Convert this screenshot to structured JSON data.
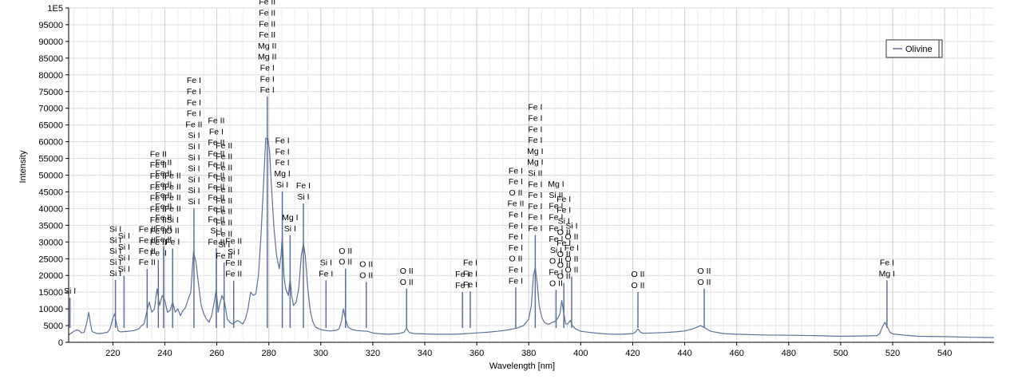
{
  "chart_data": {
    "type": "line",
    "xlabel": "Wavelength [nm]",
    "ylabel": "Intensity",
    "xlim": [
      203,
      559
    ],
    "ylim": [
      0,
      100000
    ],
    "x_ticks": [
      220,
      240,
      260,
      280,
      300,
      320,
      340,
      360,
      380,
      400,
      420,
      440,
      460,
      480,
      500,
      520,
      540
    ],
    "y_ticks": [
      0,
      5000,
      10000,
      15000,
      20000,
      25000,
      30000,
      35000,
      40000,
      45000,
      50000,
      55000,
      60000,
      65000,
      70000,
      75000,
      80000,
      85000,
      90000,
      95000,
      100000
    ],
    "y_tick_labels": [
      "0",
      "5000",
      "10000",
      "15000",
      "20000",
      "25000",
      "30000",
      "35000",
      "40000",
      "45000",
      "50000",
      "55000",
      "60000",
      "65000",
      "70000",
      "75000",
      "80000",
      "85000",
      "90000",
      "95000",
      "1E5"
    ],
    "grid": true,
    "legend": {
      "position": "top-right",
      "entries": [
        "Olivine"
      ]
    },
    "colors": {
      "series": "#5a7298",
      "grid": "#dcdcdc",
      "annotation": "#5a7298"
    },
    "series": [
      {
        "name": "Olivine",
        "points": [
          [
            203,
            2200
          ],
          [
            205,
            3300
          ],
          [
            206,
            3700
          ],
          [
            207,
            3500
          ],
          [
            208,
            2800
          ],
          [
            209,
            3000
          ],
          [
            210,
            6000
          ],
          [
            210.7,
            9000
          ],
          [
            211.3,
            6000
          ],
          [
            212,
            3200
          ],
          [
            214,
            2600
          ],
          [
            216,
            2700
          ],
          [
            218,
            3000
          ],
          [
            219,
            4200
          ],
          [
            220,
            7200
          ],
          [
            220.7,
            8500
          ],
          [
            221.3,
            6000
          ],
          [
            222,
            3500
          ],
          [
            223,
            3100
          ],
          [
            224,
            3200
          ],
          [
            226,
            3300
          ],
          [
            228,
            3500
          ],
          [
            230,
            4000
          ],
          [
            231,
            5000
          ],
          [
            232,
            5500
          ],
          [
            233,
            9000
          ],
          [
            234,
            12000
          ],
          [
            235,
            9000
          ],
          [
            236,
            10000
          ],
          [
            237,
            16000
          ],
          [
            238,
            11000
          ],
          [
            239,
            14000
          ],
          [
            240,
            12500
          ],
          [
            241,
            9000
          ],
          [
            242,
            9500
          ],
          [
            243,
            12000
          ],
          [
            244,
            9000
          ],
          [
            245,
            10000
          ],
          [
            246,
            8000
          ],
          [
            247,
            9500
          ],
          [
            248,
            10500
          ],
          [
            249,
            13000
          ],
          [
            250,
            15000
          ],
          [
            251,
            27000
          ],
          [
            252,
            24000
          ],
          [
            253,
            17000
          ],
          [
            254,
            11000
          ],
          [
            255,
            8500
          ],
          [
            256,
            7000
          ],
          [
            257,
            6000
          ],
          [
            258,
            8000
          ],
          [
            259,
            12000
          ],
          [
            259.8,
            16000
          ],
          [
            260.5,
            9000
          ],
          [
            261,
            11000
          ],
          [
            262,
            14000
          ],
          [
            263,
            12000
          ],
          [
            264,
            7000
          ],
          [
            265,
            6000
          ],
          [
            266,
            5500
          ],
          [
            267,
            6000
          ],
          [
            268,
            6500
          ],
          [
            269,
            6000
          ],
          [
            270,
            5500
          ],
          [
            271,
            7000
          ],
          [
            272,
            10000
          ],
          [
            273,
            15000
          ],
          [
            274,
            14000
          ],
          [
            275,
            14500
          ],
          [
            276,
            20000
          ],
          [
            277,
            32000
          ],
          [
            278,
            48000
          ],
          [
            278.8,
            61000
          ],
          [
            279.6,
            61000
          ],
          [
            280.3,
            57000
          ],
          [
            281,
            47000
          ],
          [
            282,
            34000
          ],
          [
            283,
            26000
          ],
          [
            284,
            22000
          ],
          [
            284.7,
            26000
          ],
          [
            285.2,
            32000
          ],
          [
            285.8,
            20000
          ],
          [
            286.5,
            16000
          ],
          [
            287.5,
            14000
          ],
          [
            288.2,
            19000
          ],
          [
            288.8,
            14000
          ],
          [
            289.5,
            11000
          ],
          [
            290.5,
            12000
          ],
          [
            291.5,
            16000
          ],
          [
            292.5,
            26000
          ],
          [
            293.3,
            29500
          ],
          [
            294,
            26000
          ],
          [
            295,
            16000
          ],
          [
            296,
            9000
          ],
          [
            297,
            6000
          ],
          [
            298,
            4500
          ],
          [
            300,
            3800
          ],
          [
            302,
            3500
          ],
          [
            304,
            3400
          ],
          [
            306,
            3600
          ],
          [
            307,
            4000
          ],
          [
            308,
            6500
          ],
          [
            308.7,
            10000
          ],
          [
            309.5,
            7000
          ],
          [
            310.5,
            4500
          ],
          [
            312,
            3800
          ],
          [
            314,
            3500
          ],
          [
            316,
            3400
          ],
          [
            318,
            3300
          ],
          [
            320,
            2800
          ],
          [
            322,
            2600
          ],
          [
            324,
            2500
          ],
          [
            326,
            2400
          ],
          [
            328,
            2500
          ],
          [
            330,
            2600
          ],
          [
            332,
            3000
          ],
          [
            333,
            4200
          ],
          [
            334,
            2900
          ],
          [
            336,
            2600
          ],
          [
            340,
            2500
          ],
          [
            344,
            2400
          ],
          [
            348,
            2400
          ],
          [
            352,
            2400
          ],
          [
            354,
            2500
          ],
          [
            356,
            2600
          ],
          [
            358,
            2700
          ],
          [
            360,
            2800
          ],
          [
            364,
            3000
          ],
          [
            368,
            3300
          ],
          [
            372,
            3700
          ],
          [
            374,
            4000
          ],
          [
            376,
            4400
          ],
          [
            378,
            5000
          ],
          [
            380,
            7000
          ],
          [
            381,
            11000
          ],
          [
            381.8,
            20000
          ],
          [
            382.5,
            22500
          ],
          [
            383.2,
            18000
          ],
          [
            384,
            11000
          ],
          [
            385,
            7500
          ],
          [
            386,
            6000
          ],
          [
            387,
            5500
          ],
          [
            388,
            5500
          ],
          [
            389,
            6000
          ],
          [
            390,
            6200
          ],
          [
            391,
            7000
          ],
          [
            392,
            8500
          ],
          [
            392.7,
            12500
          ],
          [
            393.4,
            9000
          ],
          [
            394.2,
            5500
          ],
          [
            395,
            5500
          ],
          [
            396,
            6500
          ],
          [
            396.8,
            5000
          ],
          [
            398,
            4000
          ],
          [
            400,
            3300
          ],
          [
            404,
            2900
          ],
          [
            408,
            2600
          ],
          [
            412,
            2400
          ],
          [
            416,
            2400
          ],
          [
            420,
            2600
          ],
          [
            421,
            3000
          ],
          [
            422,
            4000
          ],
          [
            423,
            3000
          ],
          [
            424,
            2700
          ],
          [
            428,
            2800
          ],
          [
            432,
            2900
          ],
          [
            436,
            3100
          ],
          [
            440,
            3400
          ],
          [
            443,
            4000
          ],
          [
            445,
            4600
          ],
          [
            446,
            5000
          ],
          [
            447,
            4600
          ],
          [
            448,
            4200
          ],
          [
            450,
            3300
          ],
          [
            455,
            2600
          ],
          [
            460,
            2400
          ],
          [
            470,
            2200
          ],
          [
            480,
            2100
          ],
          [
            490,
            2000
          ],
          [
            500,
            1800
          ],
          [
            510,
            1900
          ],
          [
            514,
            2000
          ],
          [
            515,
            2600
          ],
          [
            516,
            4500
          ],
          [
            517,
            6000
          ],
          [
            518,
            4500
          ],
          [
            519,
            3000
          ],
          [
            520,
            2500
          ],
          [
            525,
            2100
          ],
          [
            530,
            1800
          ],
          [
            540,
            1700
          ],
          [
            550,
            1500
          ],
          [
            559,
            1400
          ]
        ]
      }
    ],
    "annotations": [
      {
        "x": 203.5,
        "y": 15000,
        "labels": [
          "Si I"
        ]
      },
      {
        "x": 221,
        "y": 33500,
        "labels": [
          "Si I",
          "Si I",
          "Si I",
          "Si I",
          "Si I"
        ]
      },
      {
        "x": 224.3,
        "y": 31500,
        "labels": [
          "Si I",
          "Si I",
          "Si I",
          "Si I"
        ]
      },
      {
        "x": 233.2,
        "y": 33500,
        "labels": [
          "Fe II",
          "Fe II",
          "Fe II",
          "Fe II"
        ]
      },
      {
        "x": 237.5,
        "y": 56000,
        "labels": [
          "Fe II",
          "Fe II",
          "Fe II",
          "Fe II",
          "Fe II",
          "Fe II",
          "Fe II",
          "Fe II",
          "Fe II",
          "Fe II"
        ]
      },
      {
        "x": 239.5,
        "y": 53500,
        "labels": [
          "Fe II",
          "Fe II",
          "Fe II",
          "Fe II",
          "Fe II",
          "Fe II",
          "Fe II",
          "Fe II"
        ]
      },
      {
        "x": 243,
        "y": 49500,
        "labels": [
          "Fe II",
          "Fe II",
          "Fe II",
          "Fe II",
          "Si I",
          "O II",
          "Fe I"
        ]
      },
      {
        "x": 251.2,
        "y": 78000,
        "labels": [
          "Fe I",
          "Fe I",
          "Fe I",
          "Fe I",
          "Fe II",
          "Si I",
          "Si I",
          "Si I",
          "Si I",
          "Si I",
          "Si I",
          "Si I"
        ]
      },
      {
        "x": 259.8,
        "y": 66000,
        "labels": [
          "Fe II",
          "Fe I",
          "Fe II",
          "Fe II",
          "Fe II",
          "Fe II",
          "Fe II",
          "Fe II",
          "Fe II",
          "Fe II",
          "Si I",
          "Fe II"
        ]
      },
      {
        "x": 262.8,
        "y": 58500,
        "labels": [
          "Fe II",
          "Fe II",
          "Fe II",
          "Fe II",
          "Fe II",
          "Fe II",
          "Fe II",
          "Fe II",
          "Fe II",
          "Si I",
          "Fe II"
        ]
      },
      {
        "x": 266.5,
        "y": 30000,
        "labels": [
          "Fe II",
          "Si I",
          "Fe II",
          "Fe II"
        ]
      },
      {
        "x": 279.4,
        "y": 101500,
        "labels": [
          "Fe II",
          "Fe II",
          "Fe II",
          "Fe II",
          "Mg II",
          "Mg II",
          "Fe I",
          "Fe I",
          "Fe I"
        ]
      },
      {
        "x": 285.2,
        "y": 60000,
        "labels": [
          "Fe I",
          "Fe I",
          "Fe I",
          "Mg I",
          "Si I"
        ]
      },
      {
        "x": 288.2,
        "y": 37000,
        "labels": [
          "Mg I",
          "Si I"
        ]
      },
      {
        "x": 293.3,
        "y": 46500,
        "labels": [
          "Fe I",
          "Si I"
        ]
      },
      {
        "x": 302,
        "y": 23500,
        "labels": [
          "Si I",
          "Fe I"
        ]
      },
      {
        "x": 309.5,
        "y": 27000,
        "labels": [
          "O II",
          "O II"
        ]
      },
      {
        "x": 317.5,
        "y": 23000,
        "labels": [
          "O II",
          "O II"
        ]
      },
      {
        "x": 333,
        "y": 21000,
        "labels": [
          "O II",
          "O II"
        ]
      },
      {
        "x": 354.5,
        "y": 20000,
        "labels": [
          "Fe I",
          "Fe I"
        ]
      },
      {
        "x": 357.5,
        "y": 23500,
        "labels": [
          "Fe I",
          "Fe I",
          "Fe I"
        ]
      },
      {
        "x": 375,
        "y": 51000,
        "labels": [
          "Fe I",
          "Fe I",
          "O II",
          "Fe II",
          "Fe I",
          "Fe I",
          "Fe I",
          "Fe I",
          "O II",
          "Fe I",
          "Fe I"
        ]
      },
      {
        "x": 382.5,
        "y": 70000,
        "labels": [
          "Fe I",
          "Fe I",
          "Fe I",
          "Fe I",
          "Mg I",
          "Mg I",
          "Si II",
          "Fe I",
          "Fe I",
          "Fe I",
          "Fe I",
          "Fe I"
        ]
      },
      {
        "x": 390.5,
        "y": 47000,
        "labels": [
          "Mg I",
          "Si II",
          "Fe I",
          "Fe I",
          "Fe I",
          "Fe I",
          "Si I",
          "O II",
          "Fe I",
          "O II"
        ]
      },
      {
        "x": 393.5,
        "y": 42500,
        "labels": [
          "Fe I",
          "Fe I",
          "Si I",
          "O II",
          "Fe I",
          "O II",
          "O II",
          "O II"
        ]
      },
      {
        "x": 396.5,
        "y": 34500,
        "labels": [
          "Si I",
          "O II",
          "Fe I",
          "O II",
          "O II"
        ]
      },
      {
        "x": 422,
        "y": 20000,
        "labels": [
          "O II",
          "O II"
        ]
      },
      {
        "x": 447.5,
        "y": 21000,
        "labels": [
          "O II",
          "O II"
        ]
      },
      {
        "x": 517.8,
        "y": 23500,
        "labels": [
          "Fe I",
          "Mg I"
        ]
      }
    ]
  }
}
